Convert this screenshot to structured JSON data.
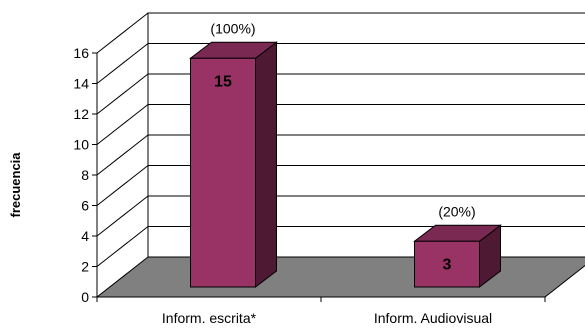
{
  "chart_data": {
    "type": "bar",
    "title": "",
    "xlabel": "",
    "ylabel": "frecuencia",
    "categories": [
      "Inform. escrita*",
      "Inform. Audiovisual"
    ],
    "values": [
      15,
      3
    ],
    "value_labels": [
      "15",
      "3"
    ],
    "percent_labels": [
      "(100%)",
      "(20%)"
    ],
    "ylim": [
      0,
      16
    ],
    "yticks": [
      "0",
      "2",
      "4",
      "6",
      "8",
      "10",
      "12",
      "14",
      "16"
    ],
    "grid": true,
    "legend": "none",
    "colors": {
      "bar_front": "#993366",
      "bar_side": "#4d1933",
      "bar_top": "#7a2952",
      "floor": "#808080",
      "grid": "#000000"
    }
  }
}
